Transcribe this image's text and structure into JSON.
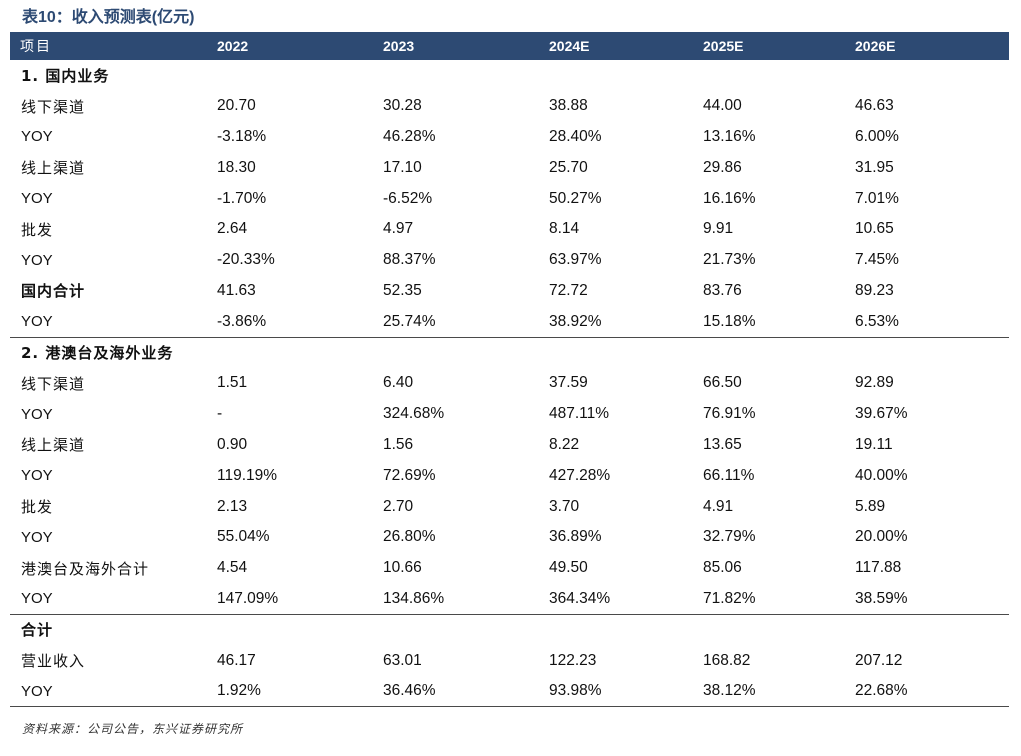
{
  "title": "表10：收入预测表(亿元)",
  "columns": [
    "项目",
    "2022",
    "2023",
    "2024E",
    "2025E",
    "2026E"
  ],
  "rows": [
    {
      "type": "section",
      "label": "1. 国内业务",
      "values": [
        "",
        "",
        "",
        "",
        ""
      ]
    },
    {
      "type": "data",
      "label": "线下渠道",
      "values": [
        "20.70",
        "30.28",
        "38.88",
        "44.00",
        "46.63"
      ]
    },
    {
      "type": "yoy",
      "label": "YOY",
      "values": [
        "-3.18%",
        "46.28%",
        "28.40%",
        "13.16%",
        "6.00%"
      ]
    },
    {
      "type": "data",
      "label": "线上渠道",
      "values": [
        "18.30",
        "17.10",
        "25.70",
        "29.86",
        "31.95"
      ]
    },
    {
      "type": "yoy",
      "label": "YOY",
      "values": [
        "-1.70%",
        "-6.52%",
        "50.27%",
        "16.16%",
        "7.01%"
      ]
    },
    {
      "type": "data",
      "label": "批发",
      "values": [
        "2.64",
        "4.97",
        "8.14",
        "9.91",
        "10.65"
      ]
    },
    {
      "type": "yoy",
      "label": "YOY",
      "values": [
        "-20.33%",
        "88.37%",
        "63.97%",
        "21.73%",
        "7.45%"
      ]
    },
    {
      "type": "subtotal",
      "label": "国内合计",
      "values": [
        "41.63",
        "52.35",
        "72.72",
        "83.76",
        "89.23"
      ]
    },
    {
      "type": "yoy",
      "label": "YOY",
      "values": [
        "-3.86%",
        "25.74%",
        "38.92%",
        "15.18%",
        "6.53%"
      ]
    },
    {
      "type": "section",
      "label": "2. 港澳台及海外业务",
      "values": [
        "",
        "",
        "",
        "",
        ""
      ]
    },
    {
      "type": "data",
      "label": "线下渠道",
      "values": [
        "1.51",
        "6.40",
        "37.59",
        "66.50",
        "92.89"
      ]
    },
    {
      "type": "yoy",
      "label": "YOY",
      "values": [
        "-",
        "324.68%",
        "487.11%",
        "76.91%",
        "39.67%"
      ]
    },
    {
      "type": "data",
      "label": "线上渠道",
      "values": [
        "0.90",
        "1.56",
        "8.22",
        "13.65",
        "19.11"
      ]
    },
    {
      "type": "yoy",
      "label": "YOY",
      "values": [
        "119.19%",
        "72.69%",
        "427.28%",
        "66.11%",
        "40.00%"
      ]
    },
    {
      "type": "data",
      "label": "批发",
      "values": [
        "2.13",
        "2.70",
        "3.70",
        "4.91",
        "5.89"
      ]
    },
    {
      "type": "yoy",
      "label": "YOY",
      "values": [
        "55.04%",
        "26.80%",
        "36.89%",
        "32.79%",
        "20.00%"
      ]
    },
    {
      "type": "data",
      "label": "港澳台及海外合计",
      "values": [
        "4.54",
        "10.66",
        "49.50",
        "85.06",
        "117.88"
      ]
    },
    {
      "type": "yoy",
      "label": "YOY",
      "values": [
        "147.09%",
        "134.86%",
        "364.34%",
        "71.82%",
        "38.59%"
      ]
    },
    {
      "type": "section",
      "label": "合计",
      "values": [
        "",
        "",
        "",
        "",
        ""
      ]
    },
    {
      "type": "data",
      "label": "营业收入",
      "values": [
        "46.17",
        "63.01",
        "122.23",
        "168.82",
        "207.12"
      ]
    },
    {
      "type": "yoy",
      "label": "YOY",
      "values": [
        "1.92%",
        "36.46%",
        "93.98%",
        "38.12%",
        "22.68%"
      ]
    }
  ],
  "source": "资料来源：公司公告，东兴证券研究所",
  "colors": {
    "header_bg": "#2d4a73",
    "title": "#2d4a73",
    "rule": "#4a4a4a"
  }
}
